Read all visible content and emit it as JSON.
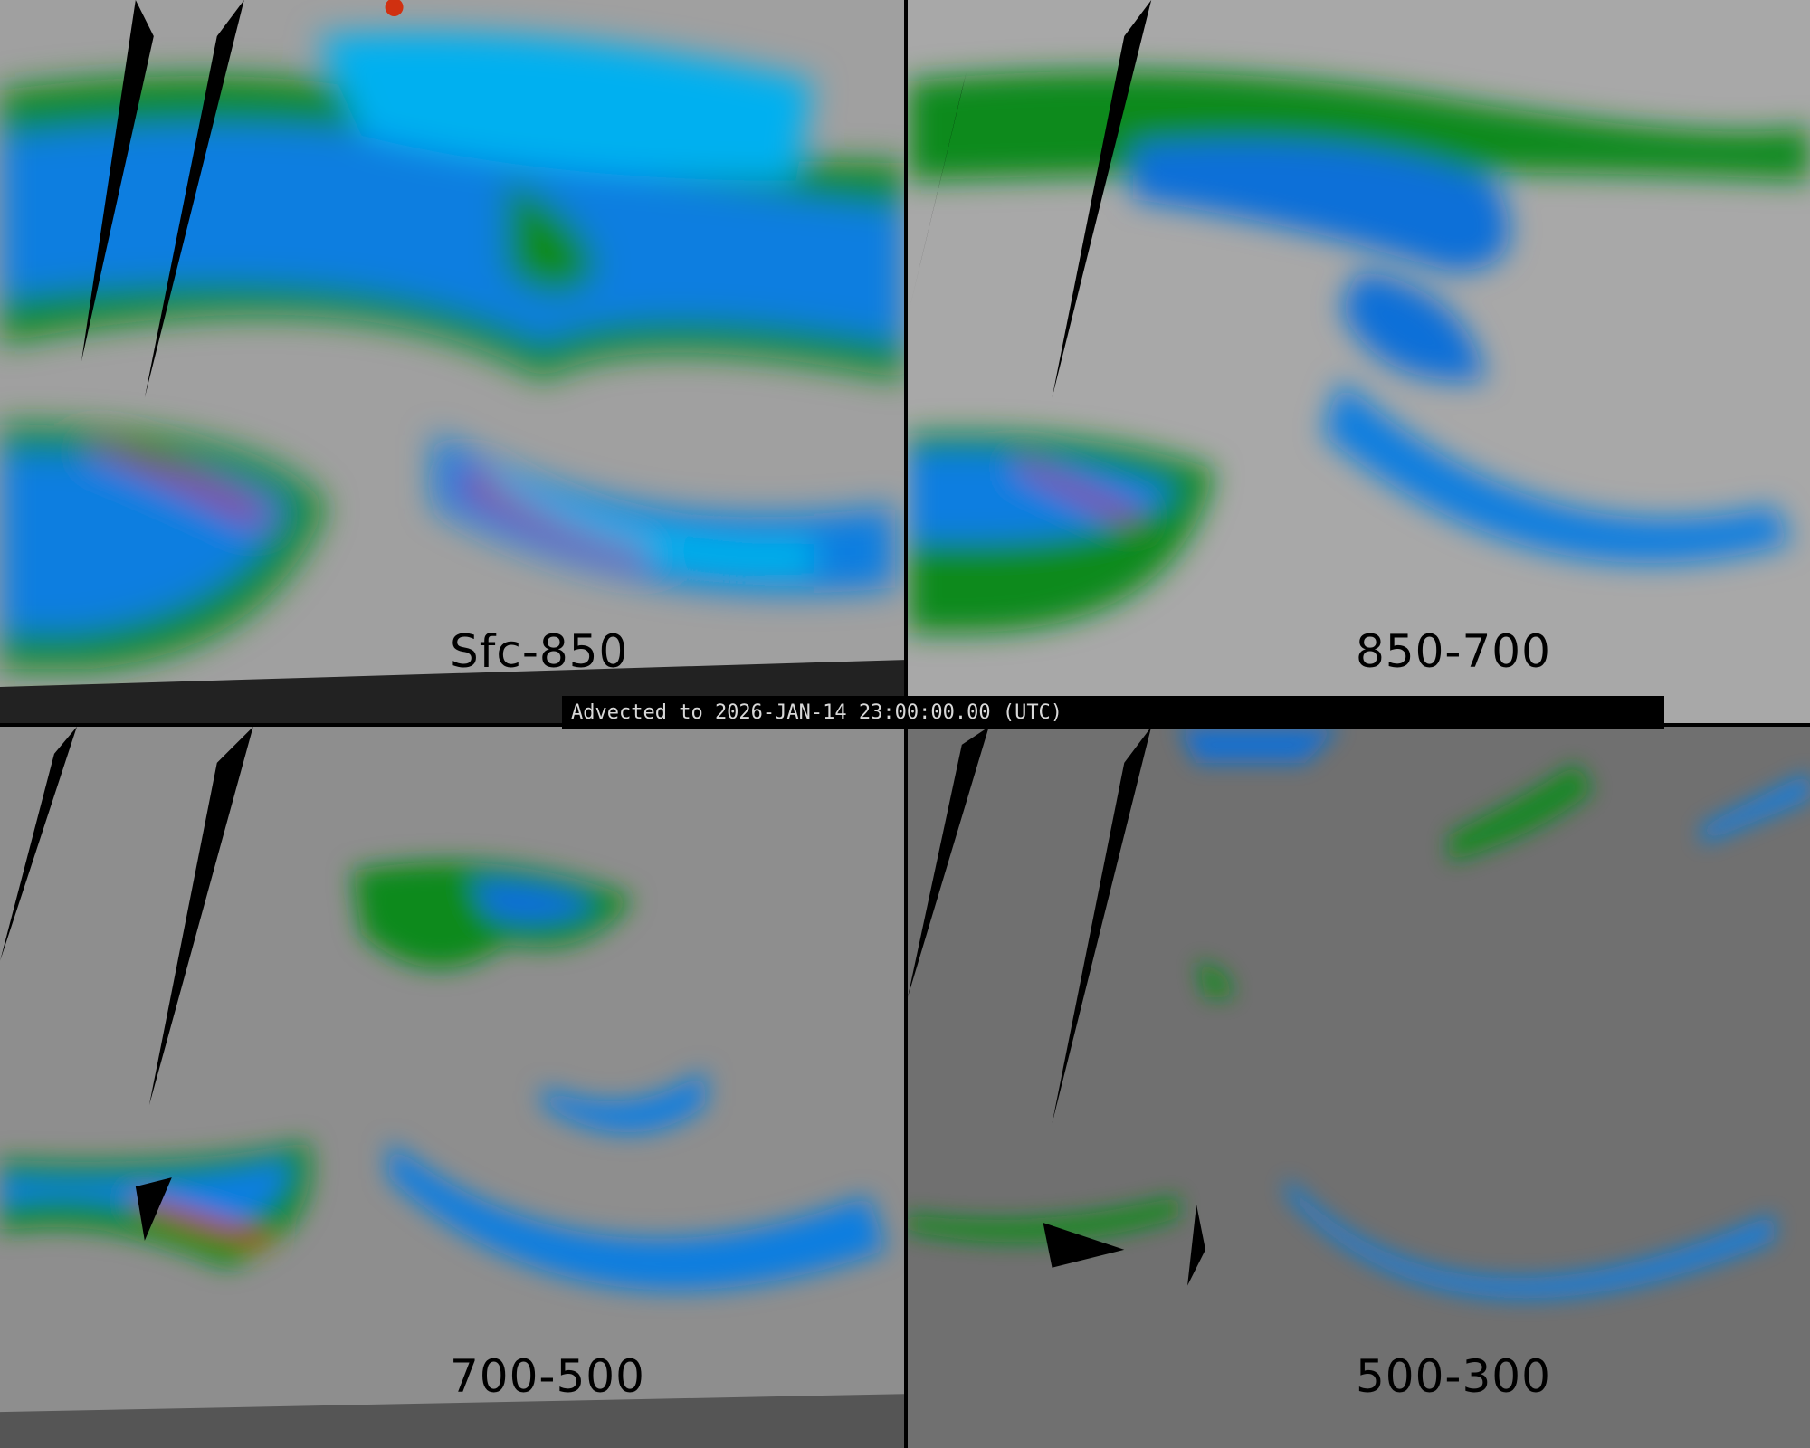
{
  "panels": [
    {
      "label": "Sfc-850",
      "palette": [
        "#9a9a9a",
        "#0a8a1a",
        "#0f6fd8",
        "#00b8f0",
        "#9a20c8",
        "#c00020"
      ]
    },
    {
      "label": "850-700",
      "palette": [
        "#9a9a9a",
        "#0a8a1a",
        "#0f6fd8",
        "#00b8f0",
        "#9a20c8"
      ]
    },
    {
      "label": "700-500",
      "palette": [
        "#8f8f8f",
        "#0a8a1a",
        "#0f6fd8",
        "#00b8f0",
        "#9a20c8",
        "#c00020"
      ]
    },
    {
      "label": "500-300",
      "palette": [
        "#6e6e6e",
        "#0a8a1a",
        "#0f6fd8",
        "#00b8f0"
      ]
    }
  ],
  "banner": {
    "text": "Advected to 2026-JAN-14 23:00:00.00 (UTC)"
  }
}
